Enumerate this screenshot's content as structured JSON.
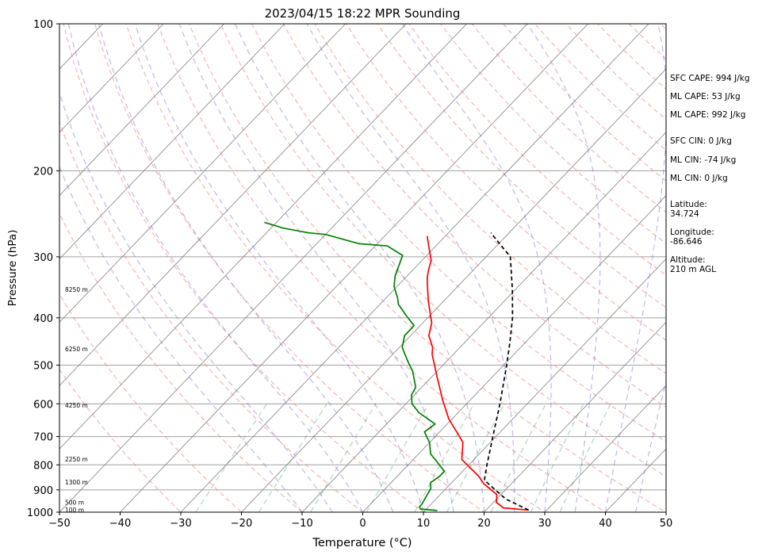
{
  "chart_data": {
    "type": "line",
    "title": "2023/04/15 18:22 MPR Sounding",
    "xlabel": "Temperature (°C)",
    "ylabel": "Pressure (hPa)",
    "xlim": [
      -50,
      50
    ],
    "ylim": [
      1000,
      100
    ],
    "y_scale": "log",
    "skew": true,
    "grid": true,
    "x_ticks": [
      -50,
      -40,
      -30,
      -20,
      -10,
      0,
      10,
      20,
      30,
      40,
      50
    ],
    "y_ticks": [
      100,
      200,
      300,
      400,
      500,
      600,
      700,
      800,
      900,
      1000
    ],
    "series": [
      {
        "color": "#ff0000",
        "points": [
          [
            27,
            990
          ],
          [
            22.5,
            980
          ],
          [
            20.5,
            955
          ],
          [
            19.3,
            920
          ],
          [
            15.5,
            875
          ],
          [
            13.5,
            845
          ],
          [
            8,
            780
          ],
          [
            5.5,
            720
          ],
          [
            4,
            700
          ],
          [
            -0.5,
            645
          ],
          [
            -4.5,
            590
          ],
          [
            -9,
            530
          ],
          [
            -13.5,
            475
          ],
          [
            -14.5,
            460
          ],
          [
            -17,
            435
          ],
          [
            -18.5,
            410
          ],
          [
            -22.5,
            370
          ],
          [
            -25.5,
            340
          ],
          [
            -26.5,
            330
          ],
          [
            -27.5,
            318
          ],
          [
            -28.5,
            305
          ],
          [
            -30.5,
            290
          ],
          [
            -33,
            272
          ]
        ]
      },
      {
        "color": "#008000",
        "points": [
          [
            12,
            992
          ],
          [
            9,
            985
          ],
          [
            8.5,
            975
          ],
          [
            8.5,
            965
          ],
          [
            8,
            930
          ],
          [
            7.5,
            895
          ],
          [
            6.5,
            870
          ],
          [
            7,
            845
          ],
          [
            7,
            825
          ],
          [
            4,
            785
          ],
          [
            2,
            760
          ],
          [
            0,
            720
          ],
          [
            -2.5,
            685
          ],
          [
            -2,
            660
          ],
          [
            -6.5,
            625
          ],
          [
            -9,
            600
          ],
          [
            -10.5,
            575
          ],
          [
            -11,
            555
          ],
          [
            -14,
            515
          ],
          [
            -16.5,
            490
          ],
          [
            -19.5,
            460
          ],
          [
            -21,
            435
          ],
          [
            -21,
            415
          ],
          [
            -24,
            395
          ],
          [
            -27,
            375
          ],
          [
            -28,
            365
          ],
          [
            -30.5,
            345
          ],
          [
            -32,
            328
          ],
          [
            -33.5,
            305
          ],
          [
            -34,
            298
          ],
          [
            -38,
            285
          ],
          [
            -43,
            282
          ],
          [
            -50,
            270
          ],
          [
            -53,
            268
          ],
          [
            -58,
            262
          ],
          [
            -62,
            255
          ]
        ]
      },
      {
        "color": "#000000",
        "dashed": true,
        "points": [
          [
            27,
            990
          ],
          [
            21.5,
            940
          ],
          [
            15,
            860
          ],
          [
            13,
            800
          ],
          [
            9.5,
            700
          ],
          [
            5.5,
            600
          ],
          [
            0.5,
            500
          ],
          [
            -2.5,
            450
          ],
          [
            -6,
            400
          ],
          [
            -10.5,
            350
          ],
          [
            -16,
            300
          ],
          [
            -23,
            268
          ]
        ]
      }
    ],
    "height_labels": [
      {
        "text": "100 m",
        "p": 988
      },
      {
        "text": "500 m",
        "p": 955
      },
      {
        "text": "1300 m",
        "p": 868
      },
      {
        "text": "2250 m",
        "p": 778
      },
      {
        "text": "4250 m",
        "p": 604
      },
      {
        "text": "6250 m",
        "p": 463
      },
      {
        "text": "8250 m",
        "p": 350
      }
    ],
    "annotations": [
      "SFC CAPE: 994 J/kg",
      "ML CAPE: 53 J/kg",
      "ML CAPE: 992 J/kg",
      "SFC CIN: 0 J/kg",
      "ML CIN: -74 J/kg",
      "ML CIN: 0 J/kg",
      "Latitude:\n34.724",
      "Longitude:\n-86.646",
      "Altitude:\n210 m AGL"
    ],
    "colors": {
      "temperature": "#ff0000",
      "dewpoint": "#008000",
      "parcel": "#000000",
      "dry_adiabats": "#f08080",
      "moist_adiabats": "#6a5acd",
      "mixing_ratio": "#2e8b57",
      "isotherms": "#808080",
      "isobars": "#a0a0a0"
    }
  }
}
